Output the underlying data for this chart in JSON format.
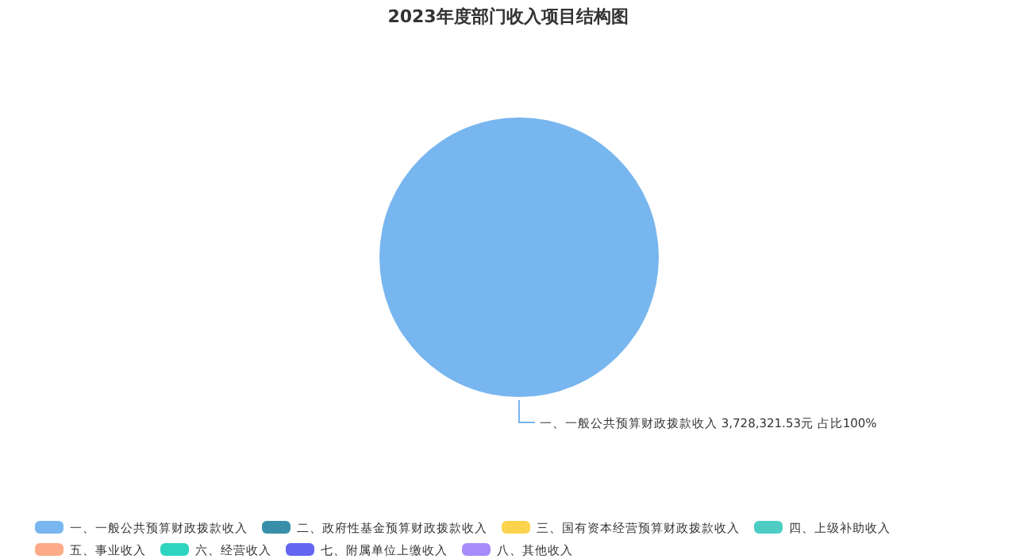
{
  "chart_data": {
    "type": "pie",
    "title": "2023年度部门收入项目结构图",
    "categories": [
      "一、一般公共预算财政拨款收入",
      "二、政府性基金预算财政拨款收入",
      "三、国有资本经营预算财政拨款收入",
      "四、上级补助收入",
      "五、事业收入",
      "六、经营收入",
      "七、附属单位上缴收入",
      "八、其他收入"
    ],
    "values": [
      3728321.53,
      0,
      0,
      0,
      0,
      0,
      0,
      0
    ],
    "colors": [
      "#78b6ef",
      "#3a8fa8",
      "#fcd34d",
      "#4ecdc4",
      "#fdab89",
      "#2dd4bf",
      "#6366f1",
      "#a78bfa"
    ],
    "value_labels": [
      "一、一般公共预算财政拨款收入 3,728,321.53元 占比100%",
      null,
      null,
      null,
      null,
      null,
      null,
      null
    ],
    "legend": "bottom"
  }
}
